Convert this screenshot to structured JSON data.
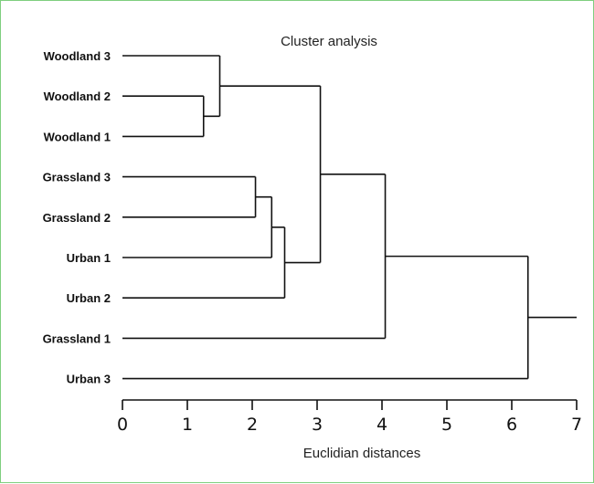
{
  "chart_data": {
    "type": "dendrogram",
    "title": "Cluster analysis",
    "xlabel": "Euclidian distances",
    "ylabel": "",
    "xlim": [
      0,
      7
    ],
    "xticks": [
      "0",
      "1",
      "2",
      "3",
      "4",
      "5",
      "6",
      "7"
    ],
    "grid": false,
    "leaves": [
      "Woodland 3",
      "Woodland 2",
      "Woodland 1",
      "Grassland 3",
      "Grassland 2",
      "Urban 1",
      "Urban 2",
      "Grassland 1",
      "Urban 3"
    ],
    "merges": [
      {
        "id": "A",
        "children": [
          "Woodland 2",
          "Woodland 1"
        ],
        "height": 1.25
      },
      {
        "id": "B",
        "children": [
          "Woodland 3",
          "A"
        ],
        "height": 1.5
      },
      {
        "id": "C",
        "children": [
          "Grassland 3",
          "Grassland 2"
        ],
        "height": 2.05
      },
      {
        "id": "D",
        "children": [
          "C",
          "Urban 1"
        ],
        "height": 2.3
      },
      {
        "id": "E",
        "children": [
          "D",
          "Urban 2"
        ],
        "height": 2.5
      },
      {
        "id": "F",
        "children": [
          "B",
          "E"
        ],
        "height": 3.05
      },
      {
        "id": "G",
        "children": [
          "F",
          "Grassland 1"
        ],
        "height": 4.05
      },
      {
        "id": "H",
        "children": [
          "G",
          "Urban 3"
        ],
        "height": 6.25
      }
    ],
    "root_stem_to": 7
  }
}
